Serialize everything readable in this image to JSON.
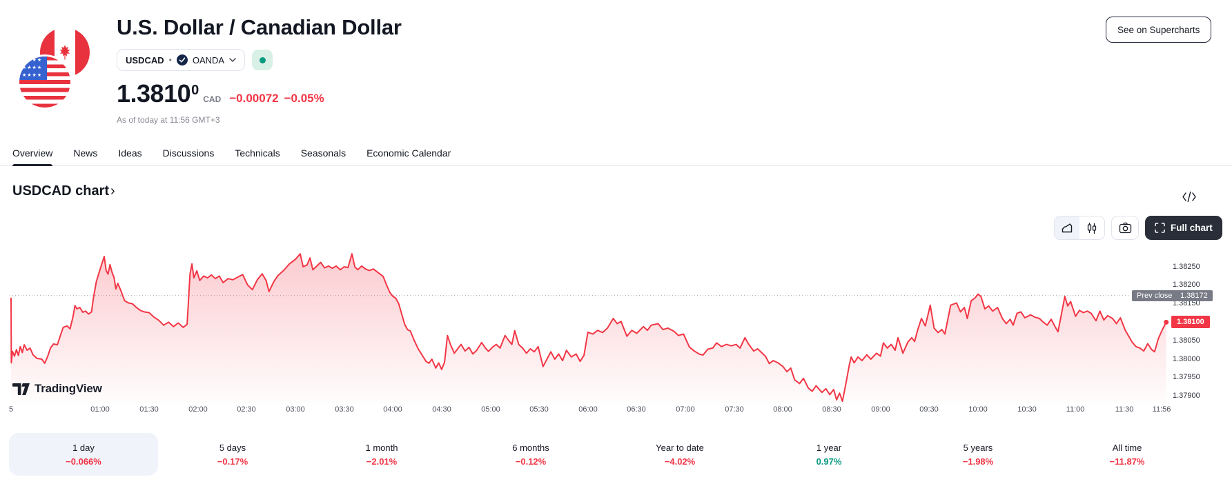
{
  "header": {
    "title": "U.S. Dollar / Canadian Dollar",
    "symbol": "USDCAD",
    "separator": "•",
    "exchange": "OANDA",
    "market_status": "open",
    "price_main": "1.3810",
    "price_sup": "0",
    "currency": "CAD",
    "change": "−0.00072",
    "change_pct": "−0.05%",
    "as_of": "As of today at 11:56 GMT+3",
    "supercharts_label": "See on Supercharts"
  },
  "tabs": {
    "active_index": 0,
    "items": [
      "Overview",
      "News",
      "Ideas",
      "Discussions",
      "Technicals",
      "Seasonals",
      "Economic Calendar"
    ]
  },
  "chart_section": {
    "title": "USDCAD chart",
    "title_chevron": "›",
    "full_chart_label": "Full chart",
    "attribution": "TradingView"
  },
  "chart_data": {
    "type": "area",
    "symbol": "USDCAD",
    "line_color": "#F23645",
    "up_color": "#089981",
    "last_price": 1.381,
    "last_price_label": "1.38100",
    "prev_close": 1.38172,
    "prev_close_label": "Prev close",
    "prev_close_value_label": "1.38172",
    "ylim": [
      1.3788,
      1.383
    ],
    "y_axis_labels": [
      {
        "label": "1.38250",
        "value": 1.3825
      },
      {
        "label": "1.38200",
        "value": 1.382
      },
      {
        "label": "1.38150",
        "value": 1.3815
      },
      {
        "label": "1.38050",
        "value": 1.3805
      },
      {
        "label": "1.38000",
        "value": 1.38
      },
      {
        "label": "1.37950",
        "value": 1.3795
      },
      {
        "label": "1.37900",
        "value": 1.379
      }
    ],
    "x_axis_ticks": [
      {
        "label": "5",
        "t": 0.085
      },
      {
        "label": "01:00",
        "t": 1
      },
      {
        "label": "01:30",
        "t": 1.5
      },
      {
        "label": "02:00",
        "t": 2
      },
      {
        "label": "02:30",
        "t": 2.5
      },
      {
        "label": "03:00",
        "t": 3
      },
      {
        "label": "03:30",
        "t": 3.5
      },
      {
        "label": "04:00",
        "t": 4
      },
      {
        "label": "04:30",
        "t": 4.5
      },
      {
        "label": "05:00",
        "t": 5
      },
      {
        "label": "05:30",
        "t": 5.5
      },
      {
        "label": "06:00",
        "t": 6
      },
      {
        "label": "06:30",
        "t": 6.5
      },
      {
        "label": "07:00",
        "t": 7
      },
      {
        "label": "07:30",
        "t": 7.5
      },
      {
        "label": "08:00",
        "t": 8
      },
      {
        "label": "08:30",
        "t": 8.5
      },
      {
        "label": "09:00",
        "t": 9
      },
      {
        "label": "09:30",
        "t": 9.5
      },
      {
        "label": "10:00",
        "t": 10
      },
      {
        "label": "10:30",
        "t": 10.5
      },
      {
        "label": "11:00",
        "t": 11
      },
      {
        "label": "11:30",
        "t": 11.5
      },
      {
        "label": "11:56",
        "t": 11.88
      }
    ],
    "points": [
      [
        0.085,
        1.38165
      ],
      [
        0.088,
        1.3799
      ],
      [
        0.1,
        1.38021
      ],
      [
        0.12,
        1.38008
      ],
      [
        0.14,
        1.38026
      ],
      [
        0.16,
        1.3801
      ],
      [
        0.18,
        1.38034
      ],
      [
        0.2,
        1.38018
      ],
      [
        0.22,
        1.38039
      ],
      [
        0.25,
        1.38024
      ],
      [
        0.28,
        1.3803
      ],
      [
        0.31,
        1.38012
      ],
      [
        0.35,
        1.38002
      ],
      [
        0.4,
        1.38
      ],
      [
        0.43,
        1.37989
      ],
      [
        0.46,
        1.38007
      ],
      [
        0.49,
        1.3803
      ],
      [
        0.52,
        1.38041
      ],
      [
        0.56,
        1.38039
      ],
      [
        0.59,
        1.38063
      ],
      [
        0.62,
        1.38086
      ],
      [
        0.66,
        1.3809
      ],
      [
        0.69,
        1.38082
      ],
      [
        0.72,
        1.38114
      ],
      [
        0.74,
        1.38145
      ],
      [
        0.76,
        1.38136
      ],
      [
        0.79,
        1.3814
      ],
      [
        0.82,
        1.38127
      ],
      [
        0.85,
        1.3813
      ],
      [
        0.88,
        1.38122
      ],
      [
        0.91,
        1.38128
      ],
      [
        0.93,
        1.38166
      ],
      [
        0.96,
        1.3821
      ],
      [
        1.0,
        1.38245
      ],
      [
        1.04,
        1.38278
      ],
      [
        1.06,
        1.3824
      ],
      [
        1.08,
        1.3823
      ],
      [
        1.1,
        1.38256
      ],
      [
        1.12,
        1.38235
      ],
      [
        1.14,
        1.38222
      ],
      [
        1.16,
        1.3819
      ],
      [
        1.18,
        1.38205
      ],
      [
        1.21,
        1.38186
      ],
      [
        1.25,
        1.38158
      ],
      [
        1.29,
        1.38152
      ],
      [
        1.33,
        1.3815
      ],
      [
        1.37,
        1.3814
      ],
      [
        1.41,
        1.38132
      ],
      [
        1.45,
        1.38128
      ],
      [
        1.5,
        1.38126
      ],
      [
        1.55,
        1.38114
      ],
      [
        1.6,
        1.38105
      ],
      [
        1.65,
        1.38092
      ],
      [
        1.7,
        1.381
      ],
      [
        1.75,
        1.38088
      ],
      [
        1.8,
        1.38098
      ],
      [
        1.85,
        1.38086
      ],
      [
        1.89,
        1.38094
      ],
      [
        1.92,
        1.3823
      ],
      [
        1.94,
        1.38258
      ],
      [
        1.96,
        1.3822
      ],
      [
        1.99,
        1.38239
      ],
      [
        2.02,
        1.38213
      ],
      [
        2.06,
        1.38225
      ],
      [
        2.1,
        1.3822
      ],
      [
        2.14,
        1.38228
      ],
      [
        2.18,
        1.38218
      ],
      [
        2.22,
        1.38225
      ],
      [
        2.26,
        1.38207
      ],
      [
        2.31,
        1.38218
      ],
      [
        2.36,
        1.38215
      ],
      [
        2.41,
        1.38222
      ],
      [
        2.46,
        1.38229
      ],
      [
        2.51,
        1.38201
      ],
      [
        2.56,
        1.38188
      ],
      [
        2.61,
        1.38215
      ],
      [
        2.66,
        1.38231
      ],
      [
        2.7,
        1.38213
      ],
      [
        2.73,
        1.38183
      ],
      [
        2.78,
        1.3821
      ],
      [
        2.82,
        1.38226
      ],
      [
        2.88,
        1.3824
      ],
      [
        2.94,
        1.38258
      ],
      [
        3.0,
        1.3827
      ],
      [
        3.05,
        1.38285
      ],
      [
        3.08,
        1.3825
      ],
      [
        3.12,
        1.38255
      ],
      [
        3.15,
        1.38274
      ],
      [
        3.18,
        1.38242
      ],
      [
        3.22,
        1.38252
      ],
      [
        3.26,
        1.38262
      ],
      [
        3.3,
        1.38247
      ],
      [
        3.34,
        1.38252
      ],
      [
        3.38,
        1.38246
      ],
      [
        3.42,
        1.38252
      ],
      [
        3.46,
        1.38242
      ],
      [
        3.5,
        1.3825
      ],
      [
        3.54,
        1.38248
      ],
      [
        3.58,
        1.38285
      ],
      [
        3.61,
        1.3825
      ],
      [
        3.64,
        1.38242
      ],
      [
        3.68,
        1.38252
      ],
      [
        3.72,
        1.38244
      ],
      [
        3.76,
        1.3824
      ],
      [
        3.8,
        1.38244
      ],
      [
        3.85,
        1.38234
      ],
      [
        3.9,
        1.38224
      ],
      [
        3.94,
        1.38198
      ],
      [
        3.97,
        1.3818
      ],
      [
        4.0,
        1.3817
      ],
      [
        4.03,
        1.38165
      ],
      [
        4.06,
        1.3815
      ],
      [
        4.09,
        1.38123
      ],
      [
        4.12,
        1.38095
      ],
      [
        4.15,
        1.3808
      ],
      [
        4.18,
        1.38076
      ],
      [
        4.22,
        1.3805
      ],
      [
        4.26,
        1.38028
      ],
      [
        4.3,
        1.38011
      ],
      [
        4.34,
        1.37994
      ],
      [
        4.37,
        1.37989
      ],
      [
        4.4,
        1.38
      ],
      [
        4.44,
        1.37976
      ],
      [
        4.47,
        1.3799
      ],
      [
        4.5,
        1.37972
      ],
      [
        4.53,
        1.37992
      ],
      [
        4.56,
        1.38064
      ],
      [
        4.59,
        1.3804
      ],
      [
        4.63,
        1.38016
      ],
      [
        4.67,
        1.3803
      ],
      [
        4.7,
        1.3804
      ],
      [
        4.74,
        1.38022
      ],
      [
        4.78,
        1.38032
      ],
      [
        4.82,
        1.38014
      ],
      [
        4.86,
        1.38024
      ],
      [
        4.91,
        1.38045
      ],
      [
        4.95,
        1.3803
      ],
      [
        4.98,
        1.38021
      ],
      [
        5.02,
        1.38032
      ],
      [
        5.06,
        1.3804
      ],
      [
        5.1,
        1.3803
      ],
      [
        5.15,
        1.38064
      ],
      [
        5.19,
        1.3805
      ],
      [
        5.22,
        1.3804
      ],
      [
        5.25,
        1.38077
      ],
      [
        5.29,
        1.3804
      ],
      [
        5.33,
        1.3803
      ],
      [
        5.37,
        1.38016
      ],
      [
        5.41,
        1.38028
      ],
      [
        5.45,
        1.3802
      ],
      [
        5.49,
        1.38034
      ],
      [
        5.54,
        1.3798
      ],
      [
        5.58,
        1.38
      ],
      [
        5.62,
        1.3802
      ],
      [
        5.66,
        1.38
      ],
      [
        5.7,
        1.38014
      ],
      [
        5.74,
        1.37996
      ],
      [
        5.78,
        1.38024
      ],
      [
        5.83,
        1.38006
      ],
      [
        5.88,
        1.38014
      ],
      [
        5.92,
        1.37994
      ],
      [
        5.96,
        1.3801
      ],
      [
        6.0,
        1.38073
      ],
      [
        6.05,
        1.38068
      ],
      [
        6.1,
        1.38078
      ],
      [
        6.15,
        1.38072
      ],
      [
        6.2,
        1.38084
      ],
      [
        6.26,
        1.3811
      ],
      [
        6.3,
        1.38096
      ],
      [
        6.34,
        1.38102
      ],
      [
        6.4,
        1.38062
      ],
      [
        6.45,
        1.38078
      ],
      [
        6.5,
        1.3807
      ],
      [
        6.57,
        1.38088
      ],
      [
        6.61,
        1.38078
      ],
      [
        6.65,
        1.38092
      ],
      [
        6.72,
        1.38096
      ],
      [
        6.77,
        1.3808
      ],
      [
        6.82,
        1.38084
      ],
      [
        6.88,
        1.38076
      ],
      [
        6.93,
        1.38064
      ],
      [
        6.98,
        1.38068
      ],
      [
        7.04,
        1.38033
      ],
      [
        7.09,
        1.38022
      ],
      [
        7.14,
        1.38014
      ],
      [
        7.18,
        1.38011
      ],
      [
        7.23,
        1.38027
      ],
      [
        7.28,
        1.3803
      ],
      [
        7.32,
        1.38044
      ],
      [
        7.37,
        1.38034
      ],
      [
        7.42,
        1.3804
      ],
      [
        7.47,
        1.38036
      ],
      [
        7.52,
        1.3804
      ],
      [
        7.56,
        1.3803
      ],
      [
        7.61,
        1.38058
      ],
      [
        7.65,
        1.3804
      ],
      [
        7.7,
        1.38022
      ],
      [
        7.74,
        1.38028
      ],
      [
        7.78,
        1.38018
      ],
      [
        7.82,
        1.38008
      ],
      [
        7.86,
        1.37988
      ],
      [
        7.9,
        1.37996
      ],
      [
        7.95,
        1.3799
      ],
      [
        8.0,
        1.3798
      ],
      [
        8.04,
        1.37966
      ],
      [
        8.08,
        1.37976
      ],
      [
        8.12,
        1.37944
      ],
      [
        8.17,
        1.37934
      ],
      [
        8.21,
        1.37948
      ],
      [
        8.26,
        1.37922
      ],
      [
        8.3,
        1.37913
      ],
      [
        8.34,
        1.37928
      ],
      [
        8.4,
        1.3791
      ],
      [
        8.44,
        1.3792
      ],
      [
        8.48,
        1.37904
      ],
      [
        8.52,
        1.37918
      ],
      [
        8.55,
        1.3789
      ],
      [
        8.58,
        1.37908
      ],
      [
        8.61,
        1.37886
      ],
      [
        8.65,
        1.3794
      ],
      [
        8.68,
        1.37984
      ],
      [
        8.7,
        1.38006
      ],
      [
        8.73,
        1.3799
      ],
      [
        8.77,
        1.38006
      ],
      [
        8.81,
        1.37996
      ],
      [
        8.86,
        1.38012
      ],
      [
        8.9,
        1.38
      ],
      [
        8.96,
        1.38016
      ],
      [
        9.0,
        1.38008
      ],
      [
        9.03,
        1.38044
      ],
      [
        9.07,
        1.3803
      ],
      [
        9.11,
        1.3804
      ],
      [
        9.15,
        1.38024
      ],
      [
        9.18,
        1.38058
      ],
      [
        9.23,
        1.38016
      ],
      [
        9.28,
        1.38046
      ],
      [
        9.32,
        1.38058
      ],
      [
        9.35,
        1.38048
      ],
      [
        9.38,
        1.38078
      ],
      [
        9.42,
        1.3811
      ],
      [
        9.46,
        1.3809
      ],
      [
        9.51,
        1.38146
      ],
      [
        9.55,
        1.38084
      ],
      [
        9.59,
        1.38072
      ],
      [
        9.63,
        1.3808
      ],
      [
        9.66,
        1.38068
      ],
      [
        9.72,
        1.38146
      ],
      [
        9.78,
        1.38152
      ],
      [
        9.82,
        1.38128
      ],
      [
        9.86,
        1.3814
      ],
      [
        9.89,
        1.3811
      ],
      [
        9.93,
        1.38158
      ],
      [
        9.97,
        1.38166
      ],
      [
        10.0,
        1.38176
      ],
      [
        10.03,
        1.3817
      ],
      [
        10.07,
        1.38136
      ],
      [
        10.11,
        1.38144
      ],
      [
        10.15,
        1.3813
      ],
      [
        10.2,
        1.3814
      ],
      [
        10.25,
        1.3811
      ],
      [
        10.29,
        1.38096
      ],
      [
        10.33,
        1.38108
      ],
      [
        10.36,
        1.38092
      ],
      [
        10.4,
        1.38124
      ],
      [
        10.44,
        1.38128
      ],
      [
        10.48,
        1.38112
      ],
      [
        10.54,
        1.3812
      ],
      [
        10.58,
        1.38114
      ],
      [
        10.63,
        1.3811
      ],
      [
        10.67,
        1.381
      ],
      [
        10.71,
        1.38092
      ],
      [
        10.75,
        1.38108
      ],
      [
        10.79,
        1.38088
      ],
      [
        10.82,
        1.38074
      ],
      [
        10.86,
        1.38128
      ],
      [
        10.89,
        1.3817
      ],
      [
        10.92,
        1.38144
      ],
      [
        10.95,
        1.38156
      ],
      [
        11.0,
        1.38116
      ],
      [
        11.04,
        1.38132
      ],
      [
        11.08,
        1.38126
      ],
      [
        11.12,
        1.3813
      ],
      [
        11.16,
        1.38124
      ],
      [
        11.21,
        1.38104
      ],
      [
        11.25,
        1.3813
      ],
      [
        11.29,
        1.38106
      ],
      [
        11.33,
        1.38118
      ],
      [
        11.38,
        1.3811
      ],
      [
        11.42,
        1.38096
      ],
      [
        11.46,
        1.38112
      ],
      [
        11.51,
        1.38078
      ],
      [
        11.55,
        1.3806
      ],
      [
        11.58,
        1.38046
      ],
      [
        11.62,
        1.38034
      ],
      [
        11.66,
        1.3803
      ],
      [
        11.7,
        1.38022
      ],
      [
        11.74,
        1.38042
      ],
      [
        11.78,
        1.38026
      ],
      [
        11.81,
        1.3802
      ],
      [
        11.85,
        1.38056
      ],
      [
        11.89,
        1.3808
      ],
      [
        11.93,
        1.381
      ]
    ]
  },
  "ranges": {
    "active_index": 0,
    "items": [
      {
        "label": "1 day",
        "value": "−0.066%",
        "dir": "down"
      },
      {
        "label": "5 days",
        "value": "−0.17%",
        "dir": "down"
      },
      {
        "label": "1 month",
        "value": "−2.01%",
        "dir": "down"
      },
      {
        "label": "6 months",
        "value": "−0.12%",
        "dir": "down"
      },
      {
        "label": "Year to date",
        "value": "−4.02%",
        "dir": "down"
      },
      {
        "label": "1 year",
        "value": "0.97%",
        "dir": "up"
      },
      {
        "label": "5 years",
        "value": "−1.98%",
        "dir": "down"
      },
      {
        "label": "All time",
        "value": "−11.87%",
        "dir": "down"
      }
    ]
  },
  "colors": {
    "down": "#F23645",
    "up": "#089981",
    "text": "#131722",
    "muted": "#787b86",
    "border": "#e0e3eb",
    "chip_bg": "#f0f3fa"
  }
}
